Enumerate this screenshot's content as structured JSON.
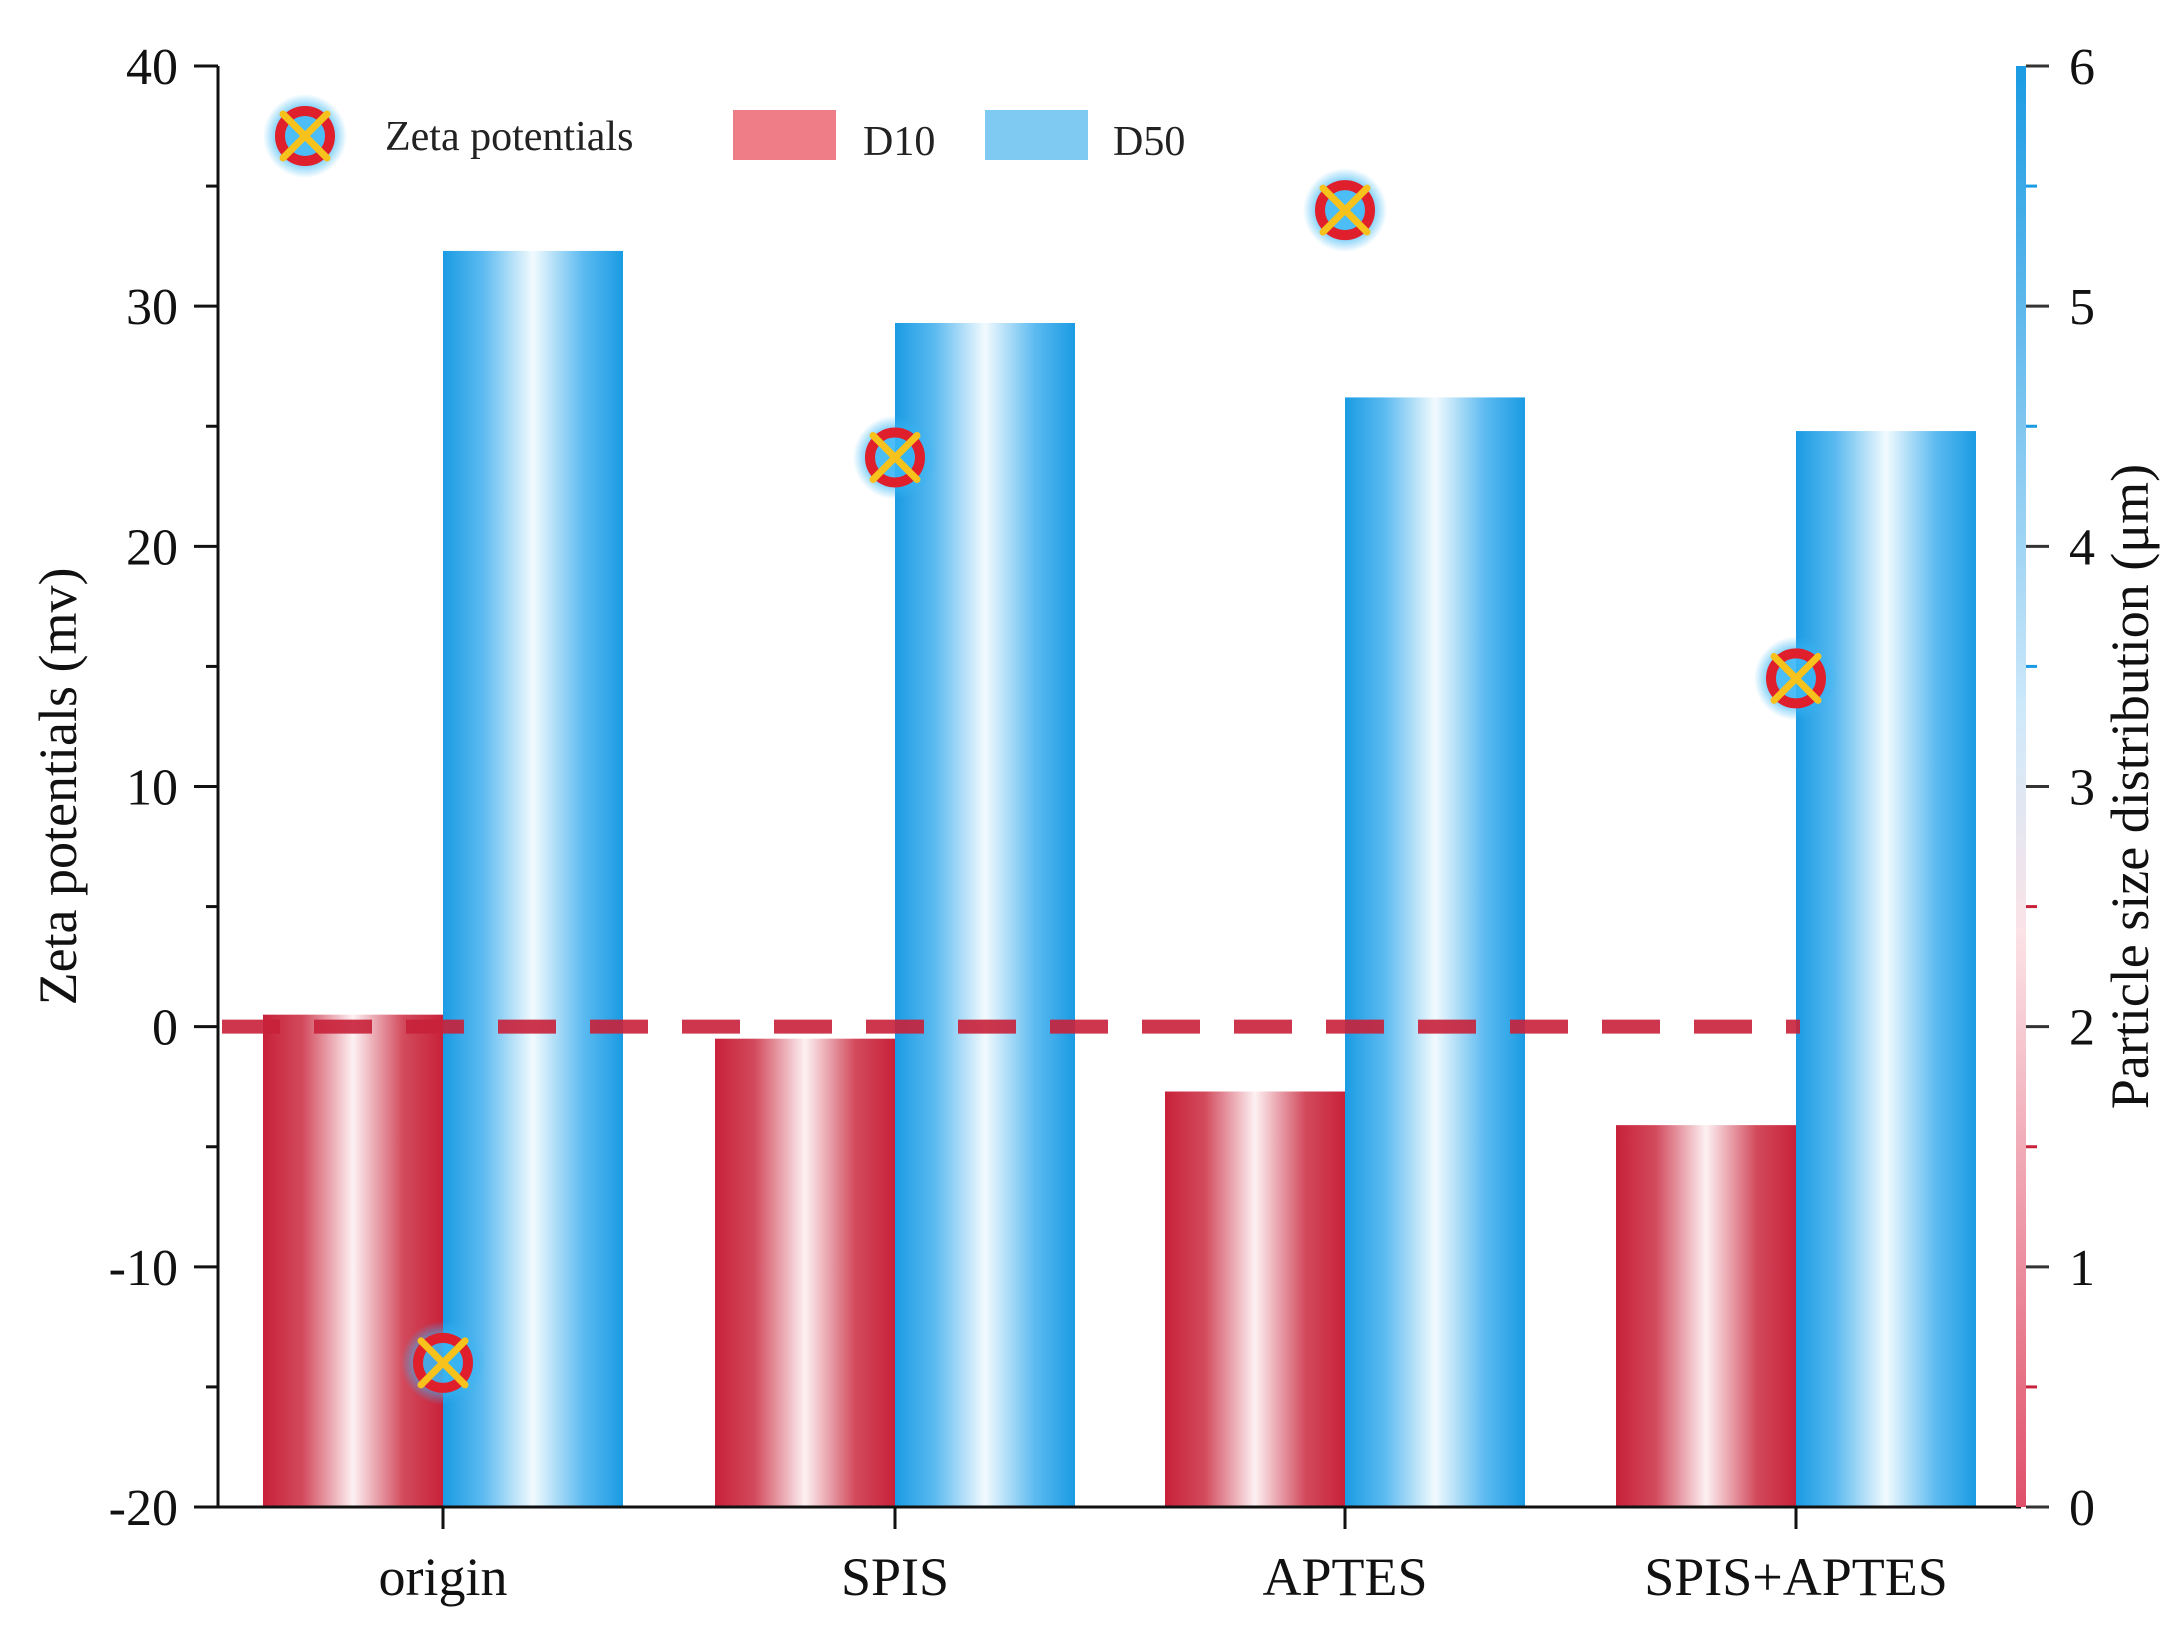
{
  "chart_data": {
    "type": "bar",
    "categories": [
      "origin",
      "SPIS",
      "APTES",
      "SPIS+APTES"
    ],
    "series": [
      {
        "name": "D10",
        "axis": "right",
        "color": "#c8213a",
        "values": [
          2.05,
          1.95,
          1.73,
          1.59
        ]
      },
      {
        "name": "D50",
        "axis": "right",
        "color": "#1ea0e6",
        "values": [
          5.23,
          4.93,
          4.62,
          4.48
        ]
      },
      {
        "name": "Zeta potentials",
        "axis": "left",
        "kind": "marker",
        "values": [
          -14,
          23.7,
          34,
          14.5
        ]
      }
    ],
    "reference_line": {
      "axis": "left",
      "value": 0,
      "style": "dashed",
      "color": "#c8213a"
    },
    "y_left": {
      "label": "Zeta potentials (mv)",
      "lim": [
        -20,
        40
      ],
      "ticks": [
        -20,
        -10,
        0,
        10,
        20,
        30,
        40
      ]
    },
    "y_right": {
      "label": "Particle size distribution (μm)",
      "lim": [
        0,
        6
      ],
      "ticks": [
        0,
        1,
        2,
        3,
        4,
        5,
        6
      ]
    },
    "xlabel": "",
    "legend": {
      "placement": "top-left",
      "entries": [
        "Zeta potentials",
        "D10",
        "D50"
      ]
    },
    "grid": false
  }
}
